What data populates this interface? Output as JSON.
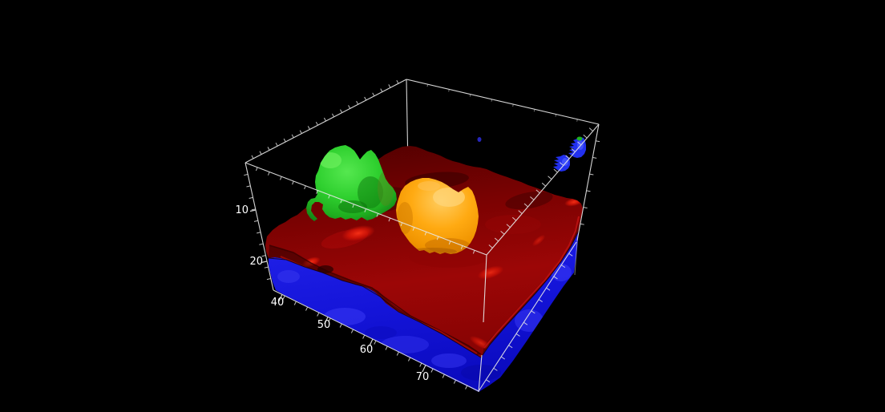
{
  "chart_data": {
    "type": "3d-isosurface",
    "title": "",
    "background_color": "#000000",
    "box_color": "#e8e8e8",
    "label_color": "#ffffff",
    "x_axis": {
      "tick_labels": [
        "40",
        "50",
        "60",
        "70"
      ]
    },
    "y_axis": {
      "tick_labels": []
    },
    "z_axis": {
      "tick_labels": [
        "10",
        "20"
      ],
      "direction": "down"
    },
    "surfaces": [
      {
        "name": "bottom-slab",
        "color": "#1414d8"
      },
      {
        "name": "terrain-layer",
        "color": "#9c0606"
      },
      {
        "name": "isosurface-green",
        "color": "#2fd02f"
      },
      {
        "name": "isosurface-orange",
        "color": "#ffaa12"
      },
      {
        "name": "isosurface-blue-small-1",
        "color": "#2230ee"
      },
      {
        "name": "isosurface-blue-small-2",
        "color": "#2230ee"
      },
      {
        "name": "speck-green",
        "color": "#22b022"
      },
      {
        "name": "speck-blue",
        "color": "#2a2ad0"
      }
    ]
  }
}
